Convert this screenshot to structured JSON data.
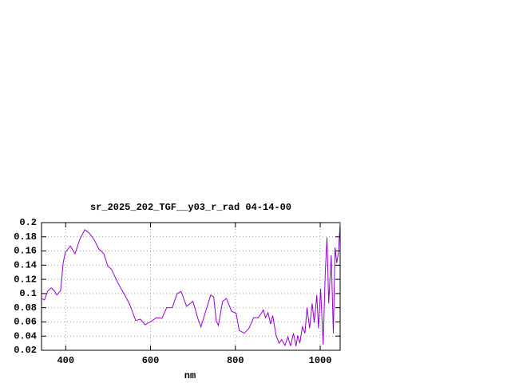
{
  "chart_data": {
    "type": "line",
    "title": "sr_2025_202_TGF__y03_r_rad 04-14-00",
    "x_label": "nm",
    "x": [
      343,
      350,
      358,
      366,
      373,
      379,
      388,
      394,
      399,
      411,
      422,
      433,
      445,
      456,
      467,
      478,
      490,
      499,
      508,
      523,
      539,
      550,
      565,
      576,
      587,
      602,
      614,
      627,
      638,
      651,
      663,
      672,
      685,
      700,
      712,
      719,
      730,
      742,
      749,
      755,
      760,
      770,
      779,
      791,
      802,
      809,
      821,
      832,
      843,
      854,
      862,
      866,
      871,
      877,
      883,
      888,
      896,
      903,
      909,
      917,
      924,
      930,
      937,
      943,
      947,
      952,
      958,
      964,
      969,
      975,
      981,
      986,
      992,
      996,
      1001,
      1007,
      1012,
      1016,
      1020,
      1026,
      1031,
      1035,
      1039,
      1043,
      1047
    ],
    "series": [
      {
        "name": "sr_2025_202_TGF__y03_r_rad",
        "color": "#9400d3",
        "values": [
          0.093,
          0.091,
          0.104,
          0.108,
          0.104,
          0.098,
          0.104,
          0.143,
          0.158,
          0.167,
          0.156,
          0.176,
          0.19,
          0.185,
          0.176,
          0.163,
          0.156,
          0.139,
          0.134,
          0.115,
          0.098,
          0.086,
          0.062,
          0.064,
          0.056,
          0.061,
          0.066,
          0.065,
          0.08,
          0.08,
          0.1,
          0.103,
          0.082,
          0.089,
          0.064,
          0.053,
          0.075,
          0.098,
          0.095,
          0.061,
          0.055,
          0.089,
          0.093,
          0.075,
          0.072,
          0.048,
          0.044,
          0.051,
          0.066,
          0.066,
          0.073,
          0.077,
          0.066,
          0.073,
          0.057,
          0.069,
          0.041,
          0.03,
          0.035,
          0.027,
          0.039,
          0.026,
          0.044,
          0.026,
          0.041,
          0.03,
          0.053,
          0.044,
          0.08,
          0.051,
          0.086,
          0.059,
          0.098,
          0.051,
          0.107,
          0.028,
          0.131,
          0.179,
          0.086,
          0.154,
          0.044,
          0.165,
          0.143,
          0.158,
          0.2
        ]
      }
    ],
    "xlim": [
      343,
      1047
    ],
    "ylim": [
      0.02,
      0.2
    ],
    "xticks": [
      400,
      600,
      800,
      1000
    ],
    "yticks": [
      0.02,
      0.04,
      0.06,
      0.08,
      0.1,
      0.12,
      0.14,
      0.16,
      0.18,
      0.2
    ],
    "grid": true
  }
}
